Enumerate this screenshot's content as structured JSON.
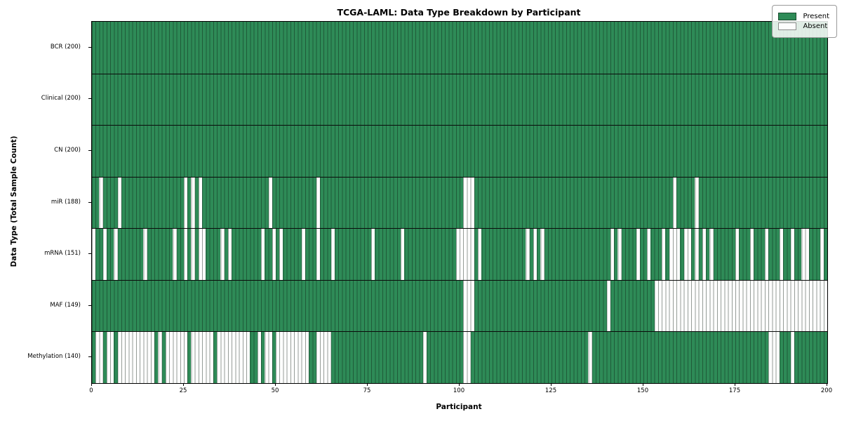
{
  "chart_data": {
    "type": "heatmap",
    "title": "TCGA-LAML: Data Type Breakdown by Participant",
    "xlabel": "Participant",
    "ylabel": "Data Type (Total Sample Count)",
    "n_participants": 200,
    "x_range": [
      0,
      200
    ],
    "x_ticks": [
      0,
      25,
      50,
      75,
      100,
      125,
      150,
      175,
      200
    ],
    "grid": "per-participant vertical hairlines, black row separators",
    "legend_position": "upper right",
    "colors": {
      "present": "#2e8b57",
      "absent": "#fdfdfd",
      "cell_edge": "rgba(10,25,15,0.42)",
      "row_separator": "#0a0a0a"
    },
    "legend": {
      "present_label": "Present",
      "absent_label": "Absent"
    },
    "rows": [
      {
        "label": "BCR (200)",
        "data_type": "BCR",
        "present_count": 200,
        "absent_participants": []
      },
      {
        "label": "Clinical (200)",
        "data_type": "Clinical",
        "present_count": 200,
        "absent_participants": []
      },
      {
        "label": "CN (200)",
        "data_type": "CN",
        "present_count": 200,
        "absent_participants": []
      },
      {
        "label": "miR (188)",
        "data_type": "miR",
        "present_count": 188,
        "absent_participants": [
          2,
          7,
          25,
          27,
          29,
          48,
          61,
          101,
          102,
          103,
          158,
          164
        ]
      },
      {
        "label": "mRNA (151)",
        "data_type": "mRNA",
        "present_count": 151,
        "absent_participants": [
          0,
          3,
          6,
          14,
          22,
          25,
          27,
          29,
          30,
          35,
          37,
          46,
          49,
          51,
          57,
          61,
          65,
          76,
          84,
          99,
          100,
          101,
          102,
          103,
          105,
          118,
          120,
          122,
          141,
          143,
          148,
          151,
          155,
          157,
          158,
          159,
          161,
          162,
          164,
          166,
          168,
          175,
          179,
          183,
          187,
          190,
          193,
          194,
          198
        ]
      },
      {
        "label": "MAF (149)",
        "data_type": "MAF",
        "present_count": 149,
        "absent_participants": [
          101,
          102,
          103,
          140,
          153,
          154,
          155,
          156,
          157,
          158,
          159,
          160,
          161,
          162,
          163,
          164,
          165,
          166,
          167,
          168,
          169,
          170,
          171,
          172,
          173,
          174,
          175,
          176,
          177,
          178,
          179,
          180,
          181,
          182,
          183,
          184,
          185,
          186,
          187,
          188,
          189,
          190,
          191,
          192,
          193,
          194,
          195,
          196,
          197,
          198,
          199
        ]
      },
      {
        "label": "Methylation (140)",
        "data_type": "Methylation",
        "present_count": 140,
        "absent_participants": [
          1,
          2,
          4,
          5,
          7,
          8,
          9,
          10,
          11,
          12,
          13,
          14,
          15,
          16,
          18,
          20,
          21,
          22,
          23,
          24,
          25,
          27,
          28,
          29,
          30,
          31,
          32,
          34,
          35,
          36,
          37,
          38,
          39,
          40,
          41,
          42,
          45,
          47,
          48,
          50,
          51,
          52,
          53,
          54,
          55,
          56,
          57,
          58,
          61,
          62,
          63,
          64,
          90,
          101,
          102,
          135,
          184,
          185,
          186,
          190
        ]
      }
    ]
  }
}
